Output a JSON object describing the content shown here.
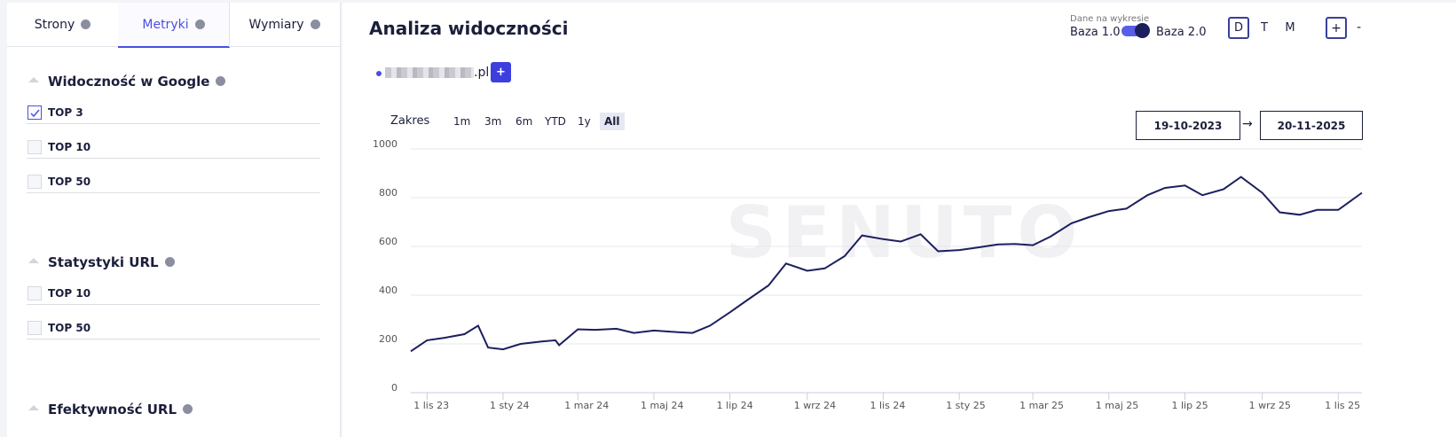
{
  "sidebar": {
    "tabs": [
      "Strony",
      "Metryki",
      "Wymiary"
    ],
    "active_tab": 1,
    "sections": [
      {
        "title": "Widoczność w Google",
        "items": [
          {
            "label": "TOP 3",
            "checked": true
          },
          {
            "label": "TOP 10",
            "checked": false
          },
          {
            "label": "TOP 50",
            "checked": false
          }
        ]
      },
      {
        "title": "Statystyki URL",
        "items": [
          {
            "label": "TOP 10",
            "checked": false
          },
          {
            "label": "TOP 50",
            "checked": false
          }
        ]
      },
      {
        "title": "Efektywność URL",
        "items": []
      }
    ]
  },
  "header": {
    "title": "Analiza widoczności",
    "data_caption": "Dane na wykresie",
    "base_left": "Baza 1.0",
    "base_right": "Baza 2.0",
    "periods": [
      "D",
      "T",
      "M"
    ],
    "active_period": 0,
    "zoom_in": "+",
    "zoom_out": "-"
  },
  "domain": {
    "suffix": ".pl",
    "add": "+"
  },
  "range": {
    "label": "Zakres",
    "options": [
      "1m",
      "3m",
      "6m",
      "YTD",
      "1y",
      "All"
    ],
    "active": 5,
    "from": "19-10-2023",
    "arrow": "→",
    "to": "20-11-2025"
  },
  "chart_data": {
    "type": "line",
    "watermark": "SENUTO",
    "x": [
      "2023-10-19",
      "2023-11-01",
      "2023-11-15",
      "2023-12-01",
      "2023-12-12",
      "2023-12-20",
      "2024-01-01",
      "2024-01-15",
      "2024-02-01",
      "2024-02-12",
      "2024-02-15",
      "2024-03-01",
      "2024-03-15",
      "2024-04-01",
      "2024-04-15",
      "2024-05-01",
      "2024-05-15",
      "2024-06-01",
      "2024-06-15",
      "2024-07-01",
      "2024-07-15",
      "2024-08-01",
      "2024-08-15",
      "2024-09-01",
      "2024-09-15",
      "2024-10-01",
      "2024-10-15",
      "2024-11-01",
      "2024-11-15",
      "2024-12-01",
      "2024-12-15",
      "2025-01-01",
      "2025-01-15",
      "2025-02-01",
      "2025-02-15",
      "2025-03-01",
      "2025-03-15",
      "2025-04-01",
      "2025-04-15",
      "2025-05-01",
      "2025-05-15",
      "2025-06-01",
      "2025-06-15",
      "2025-07-01",
      "2025-07-15",
      "2025-08-01",
      "2025-08-15",
      "2025-09-01",
      "2025-09-15",
      "2025-10-01",
      "2025-10-15",
      "2025-11-01",
      "2025-11-20"
    ],
    "series": [
      {
        "color": "#1b1f5e",
        "values": [
          170,
          215,
          225,
          240,
          275,
          185,
          178,
          200,
          210,
          215,
          195,
          260,
          258,
          262,
          245,
          255,
          250,
          245,
          275,
          330,
          380,
          440,
          530,
          500,
          510,
          560,
          645,
          630,
          620,
          650,
          580,
          585,
          595,
          608,
          610,
          605,
          640,
          695,
          720,
          745,
          755,
          810,
          840,
          850,
          810,
          835,
          885,
          820,
          740,
          730,
          750,
          750,
          820
        ]
      }
    ],
    "xlim": [
      "2023-10-19",
      "2025-11-20"
    ],
    "xticks": [
      {
        "value": "2023-11-01",
        "label": "1 lis 23"
      },
      {
        "value": "2024-01-01",
        "label": "1 sty 24"
      },
      {
        "value": "2024-03-01",
        "label": "1 mar 24"
      },
      {
        "value": "2024-05-01",
        "label": "1 maj 24"
      },
      {
        "value": "2024-07-01",
        "label": "1 lip 24"
      },
      {
        "value": "2024-09-01",
        "label": "1 wrz 24"
      },
      {
        "value": "2024-11-01",
        "label": "1 lis 24"
      },
      {
        "value": "2025-01-01",
        "label": "1 sty 25"
      },
      {
        "value": "2025-03-01",
        "label": "1 mar 25"
      },
      {
        "value": "2025-05-01",
        "label": "1 maj 25"
      },
      {
        "value": "2025-07-01",
        "label": "1 lip 25"
      },
      {
        "value": "2025-09-01",
        "label": "1 wrz 25"
      },
      {
        "value": "2025-11-01",
        "label": "1 lis 25"
      }
    ],
    "ylim": [
      0,
      1000
    ],
    "yticks": [
      0,
      200,
      400,
      600,
      800,
      1000
    ],
    "grid": true
  }
}
